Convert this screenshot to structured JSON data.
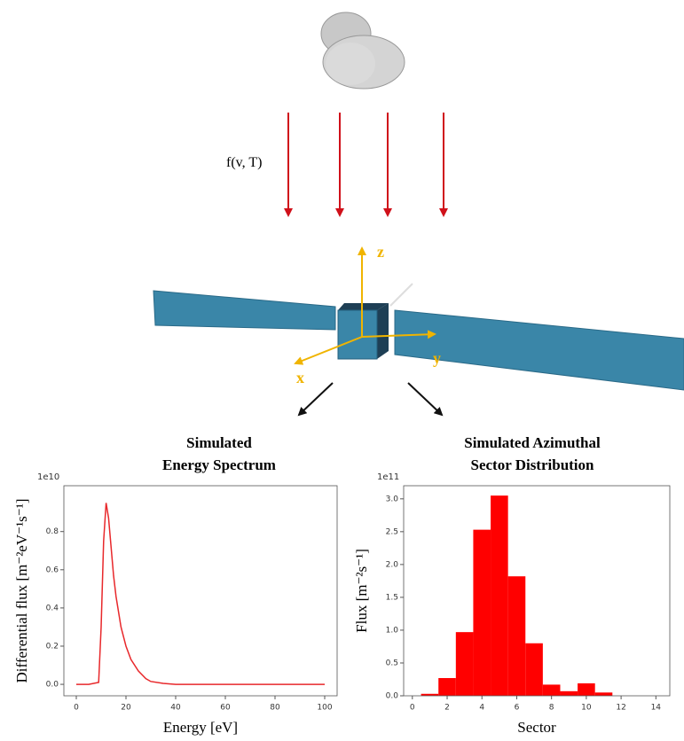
{
  "diagram": {
    "flux_label": "f(v, T)",
    "axis_z": "z",
    "axis_y": "y",
    "axis_x": "x"
  },
  "chart_data": [
    {
      "type": "line",
      "title": [
        "Simulated",
        "Energy Spectrum"
      ],
      "offset_text": "1e10",
      "x_label": "Energy [eV]",
      "y_label": "Differential flux [m⁻²eV⁻¹s⁻¹]",
      "color": "#e8282b",
      "x": [
        0,
        5,
        9,
        10,
        11,
        12,
        13,
        14,
        15,
        16,
        18,
        20,
        22,
        25,
        28,
        30,
        35,
        40,
        50,
        60,
        80,
        100
      ],
      "values": [
        0,
        0,
        0.01,
        0.3,
        0.75,
        0.95,
        0.87,
        0.72,
        0.57,
        0.46,
        0.3,
        0.2,
        0.13,
        0.07,
        0.03,
        0.015,
        0.005,
        0,
        0,
        0,
        0,
        0
      ],
      "xlim": [
        -5,
        105
      ],
      "ylim": [
        -0.06,
        1.04
      ],
      "xticks": [
        0,
        20,
        40,
        60,
        80,
        100
      ],
      "yticks": [
        {
          "value": 0,
          "label": "0.0"
        },
        0.2,
        0.4,
        0.6,
        0.8
      ]
    },
    {
      "type": "histogram",
      "title": [
        "Simulated Azimuthal",
        "Sector Distribution"
      ],
      "offset_text": "1e11",
      "x_label": "Sector",
      "y_label": "Flux [m⁻²s⁻¹]",
      "color": "#ff0000",
      "bins": [
        0.5,
        1.5,
        2.5,
        3.5,
        4.5,
        5.5,
        6.5,
        7.5,
        8.5,
        9.5,
        10.5,
        11.5
      ],
      "values": [
        0.03,
        0.27,
        0.97,
        2.53,
        3.05,
        1.82,
        0.8,
        0.17,
        0.07,
        0.19,
        0.05
      ],
      "xlim": [
        -0.5,
        14.8
      ],
      "ylim": [
        0,
        3.2
      ],
      "xticks": [
        0,
        2,
        4,
        6,
        8,
        10,
        12,
        14
      ],
      "yticks": [
        {
          "value": 0,
          "label": "0.0"
        },
        0.5,
        {
          "value": 1,
          "label": "1.0"
        },
        1.5,
        {
          "value": 2,
          "label": "2.0"
        },
        2.5,
        {
          "value": 3,
          "label": "3.0"
        }
      ]
    }
  ]
}
